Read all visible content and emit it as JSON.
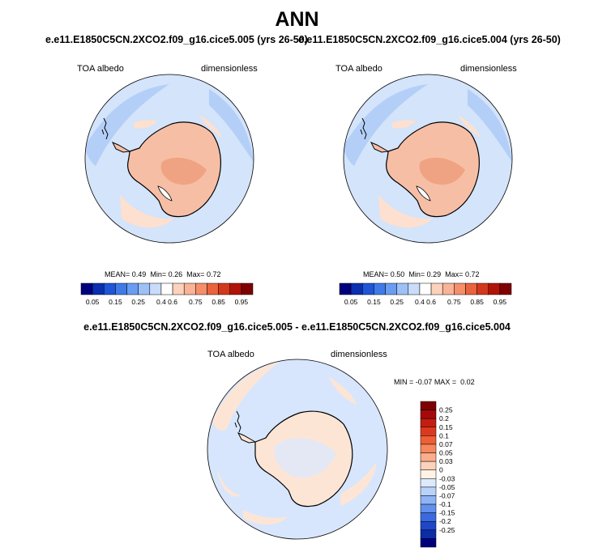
{
  "title": "ANN",
  "panels": [
    {
      "case_title": "e.e11.E1850C5CN.2XCO2.f09_g16.cice5.005 (yrs 26-50)",
      "variable": "TOA albedo",
      "units": "dimensionless",
      "stats": {
        "mean_label": "MEAN=",
        "mean": "0.49",
        "min_label": "Min=",
        "min": "0.26",
        "max_label": "Max=",
        "max": "0.72"
      }
    },
    {
      "case_title": "e.e11.E1850C5CN.2XCO2.f09_g16.cice5.004 (yrs 26-50)",
      "variable": "TOA albedo",
      "units": "dimensionless",
      "stats": {
        "mean_label": "MEAN=",
        "mean": "0.50",
        "min_label": "Min=",
        "min": "0.29",
        "max_label": "Max=",
        "max": "0.72"
      }
    }
  ],
  "abs_colorbar": {
    "colors": [
      "#00007f",
      "#0b2fb0",
      "#1f55d6",
      "#3f7ae8",
      "#6a9cf2",
      "#9dc0f7",
      "#c9dcfa",
      "#ffffff",
      "#fcd2bd",
      "#f9b397",
      "#f48f6a",
      "#e9633d",
      "#d4381c",
      "#b21308",
      "#7f0000"
    ],
    "tick_labels": [
      "0.05",
      "0.15",
      "0.25",
      "0.4",
      "0.6",
      "0.75",
      "0.85",
      "0.95"
    ]
  },
  "difference": {
    "title": "e.e11.E1850C5CN.2XCO2.f09_g16.cice5.005 - e.e11.E1850C5CN.2XCO2.f09_g16.cice5.004",
    "variable": "TOA albedo",
    "units": "dimensionless",
    "min_label": "MIN =",
    "min": "-0.07",
    "max_label": "MAX =",
    "max": "0.02",
    "colorbar": {
      "colors": [
        "#7f0000",
        "#a50a0a",
        "#c41e12",
        "#dc3a1f",
        "#ee5f35",
        "#f7875c",
        "#fbad8c",
        "#fdd2bc",
        "#fff3e6",
        "#ddeafc",
        "#b8d2fb",
        "#8fb4f5",
        "#6290ec",
        "#3b6ae0",
        "#1f47c8",
        "#0b2da6",
        "#00007f"
      ],
      "tick_labels": [
        "0.25",
        "0.2",
        "0.15",
        "0.1",
        "0.07",
        "0.05",
        "0.03",
        "0",
        "-0.03",
        "-0.05",
        "-0.07",
        "-0.1",
        "-0.15",
        "-0.2",
        "-0.25"
      ]
    }
  },
  "colors": {
    "map_ocean_light": "#d3e4fb",
    "map_ocean_mid": "#b4cff7",
    "map_land_peach": "#f6bfa5",
    "map_land_deep": "#f0a382",
    "diff_ocean": "#d7e6fc",
    "diff_land": "#fde5d6",
    "coast": "#000000"
  }
}
